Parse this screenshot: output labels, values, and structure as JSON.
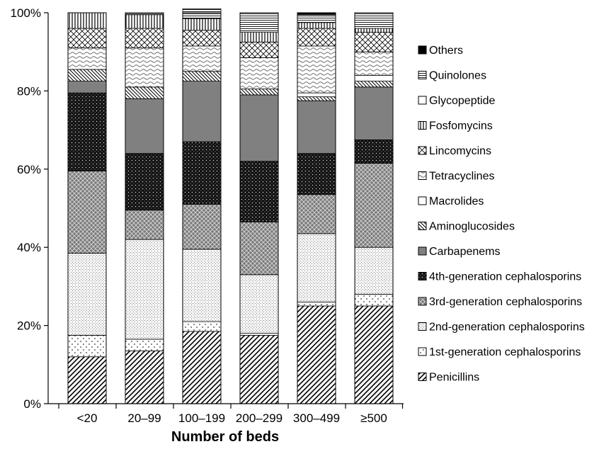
{
  "chart_data": {
    "type": "bar",
    "stacked": true,
    "percent": true,
    "xlabel": "Number of beds",
    "ylabel": "",
    "ylim": [
      0,
      100
    ],
    "yticks": [
      "0%",
      "20%",
      "40%",
      "60%",
      "80%",
      "100%"
    ],
    "categories": [
      "<20",
      "20–99",
      "100–199",
      "200–299",
      "300–499",
      "≥500"
    ],
    "legend_position": "right",
    "grid": false,
    "series": [
      {
        "name": "Penicillins",
        "pattern": "diagonal-hatch",
        "values": [
          12,
          13.5,
          18.5,
          17.5,
          25,
          25
        ]
      },
      {
        "name": "1st-generation cephalosporins",
        "pattern": "dots",
        "values": [
          5.5,
          3,
          2.5,
          0.5,
          1,
          3
        ]
      },
      {
        "name": "2nd-generation cephalosporins",
        "pattern": "fine-checker",
        "values": [
          21,
          25.5,
          18.5,
          15,
          17.5,
          12
        ]
      },
      {
        "name": "3rd-generation cephalosporins",
        "pattern": "dark-crosshatch",
        "values": [
          21,
          7.5,
          11.5,
          13.5,
          10,
          21.5
        ]
      },
      {
        "name": "4th-generation cephalosporins",
        "pattern": "black-dotted",
        "values": [
          20,
          14.5,
          16,
          15.5,
          10.5,
          6
        ]
      },
      {
        "name": "Carbapenems",
        "pattern": "solid-gray",
        "values": [
          3,
          14,
          15.5,
          17,
          13.5,
          13.5
        ]
      },
      {
        "name": "Aminoglucosides",
        "pattern": "back-diagonal",
        "values": [
          3,
          3,
          2.5,
          1.5,
          1,
          1.5
        ]
      },
      {
        "name": "Macrolides",
        "pattern": "white",
        "values": [
          0,
          0,
          0,
          0,
          1,
          1.5
        ]
      },
      {
        "name": "Tetracyclines",
        "pattern": "wave",
        "values": [
          5.5,
          10,
          6.5,
          8,
          12,
          6
        ]
      },
      {
        "name": "Lincomycins",
        "pattern": "cross-hatch",
        "values": [
          5,
          5,
          4,
          4,
          4.5,
          5
        ]
      },
      {
        "name": "Fosfomycins",
        "pattern": "vertical-lines",
        "values": [
          4,
          3.5,
          3,
          2.5,
          1.5,
          1
        ]
      },
      {
        "name": "Glycopeptide",
        "pattern": "white",
        "values": [
          0,
          0,
          0,
          0,
          0,
          0
        ]
      },
      {
        "name": "Quinolones",
        "pattern": "horizontal-lines",
        "values": [
          0,
          0.5,
          2.5,
          5,
          2,
          4
        ]
      },
      {
        "name": "Others",
        "pattern": "solid-black",
        "values": [
          0,
          0,
          0,
          0,
          0.5,
          0
        ]
      }
    ]
  },
  "colors": {
    "axis": "#000000",
    "gray": "#808080",
    "dark_gray": "#555555",
    "background": "#ffffff"
  }
}
